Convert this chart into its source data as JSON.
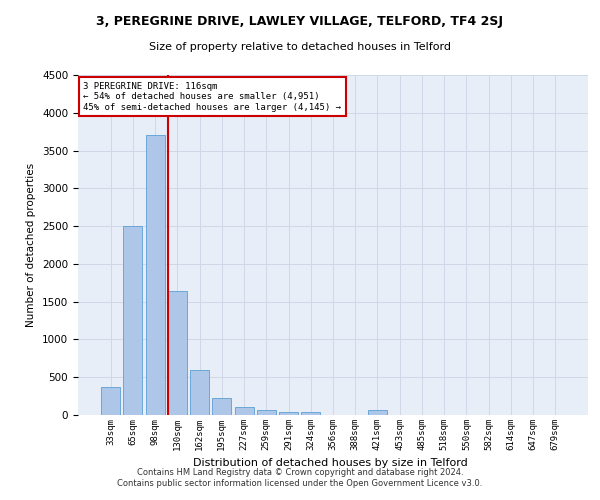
{
  "title": "3, PEREGRINE DRIVE, LAWLEY VILLAGE, TELFORD, TF4 2SJ",
  "subtitle": "Size of property relative to detached houses in Telford",
  "xlabel": "Distribution of detached houses by size in Telford",
  "ylabel": "Number of detached properties",
  "footer_line1": "Contains HM Land Registry data © Crown copyright and database right 2024.",
  "footer_line2": "Contains public sector information licensed under the Open Government Licence v3.0.",
  "categories": [
    "33sqm",
    "65sqm",
    "98sqm",
    "130sqm",
    "162sqm",
    "195sqm",
    "227sqm",
    "259sqm",
    "291sqm",
    "324sqm",
    "356sqm",
    "388sqm",
    "421sqm",
    "453sqm",
    "485sqm",
    "518sqm",
    "550sqm",
    "582sqm",
    "614sqm",
    "647sqm",
    "679sqm"
  ],
  "values": [
    370,
    2500,
    3700,
    1640,
    590,
    230,
    105,
    60,
    40,
    40,
    0,
    0,
    60,
    0,
    0,
    0,
    0,
    0,
    0,
    0,
    0
  ],
  "bar_color": "#aec6e8",
  "bar_edge_color": "#5a9fd4",
  "grid_color": "#d0d8e8",
  "background_color": "#e8eef8",
  "annotation_text": "3 PEREGRINE DRIVE: 116sqm\n← 54% of detached houses are smaller (4,951)\n45% of semi-detached houses are larger (4,145) →",
  "annotation_box_color": "#cc0000",
  "vline_x_index": 2.56,
  "vline_color": "#cc0000",
  "ylim": [
    0,
    4500
  ],
  "yticks": [
    0,
    500,
    1000,
    1500,
    2000,
    2500,
    3000,
    3500,
    4000,
    4500
  ]
}
